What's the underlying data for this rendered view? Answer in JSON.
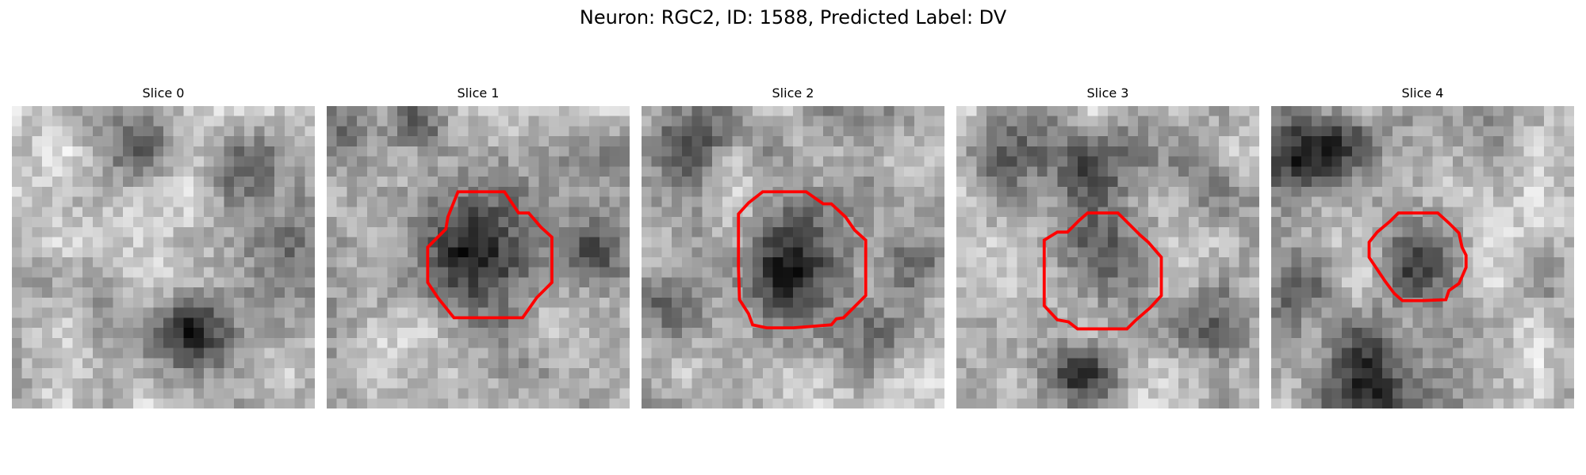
{
  "figure": {
    "title": "Neuron: RGC2, ID: 1588, Predicted Label: DV",
    "colors": {
      "contour": "#ff0000",
      "background": "#ffffff",
      "colormap": "gray"
    }
  },
  "panels": [
    {
      "title": "Slice 0",
      "has_contour": false
    },
    {
      "title": "Slice 1",
      "has_contour": true
    },
    {
      "title": "Slice 2",
      "has_contour": true
    },
    {
      "title": "Slice 3",
      "has_contour": true
    },
    {
      "title": "Slice 4",
      "has_contour": true
    }
  ]
}
